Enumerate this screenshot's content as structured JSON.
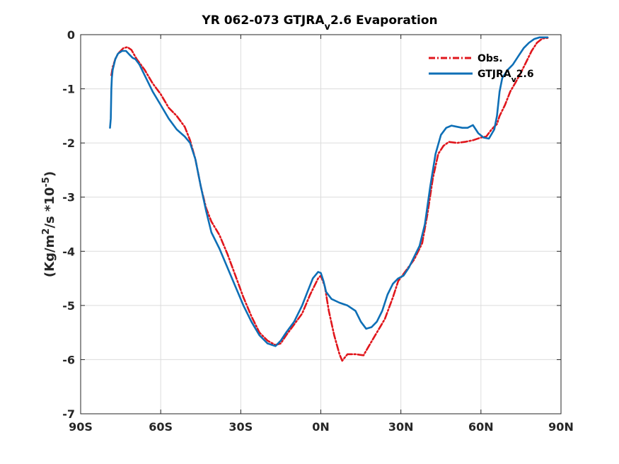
{
  "chart_data": {
    "type": "line",
    "title": "YR 062-073 GTJRA",
    "title_sub": "v",
    "title_rest": "2.6 Evaporation",
    "ylabel": "(Kg/m",
    "ylabel_sup1": "2",
    "ylabel_mid": "/s *10",
    "ylabel_sup2": "-5",
    "ylabel_end": ")",
    "xlim": [
      -90,
      90
    ],
    "ylim": [
      -7,
      0
    ],
    "x_ticks": [
      -90,
      -60,
      -30,
      0,
      30,
      60,
      90
    ],
    "x_tick_labels": [
      "90S",
      "60S",
      "30S",
      "0N",
      "30N",
      "60N",
      "90N"
    ],
    "y_ticks": [
      0,
      -1,
      -2,
      -3,
      -4,
      -5,
      -6,
      -7
    ],
    "y_tick_labels": [
      "0",
      "-1",
      "-2",
      "-3",
      "-4",
      "-5",
      "-6",
      "-7"
    ],
    "grid": true,
    "legend_position": "top-right",
    "series": [
      {
        "name": "Obs.",
        "color": "#e0161c",
        "style": "dash-dot",
        "points": [
          [
            -78.5,
            -0.75
          ],
          [
            -78,
            -0.6
          ],
          [
            -77,
            -0.45
          ],
          [
            -76,
            -0.35
          ],
          [
            -74,
            -0.25
          ],
          [
            -72.5,
            -0.23
          ],
          [
            -71,
            -0.28
          ],
          [
            -69,
            -0.45
          ],
          [
            -66,
            -0.65
          ],
          [
            -63,
            -0.9
          ],
          [
            -60,
            -1.1
          ],
          [
            -57,
            -1.35
          ],
          [
            -54,
            -1.5
          ],
          [
            -51,
            -1.7
          ],
          [
            -49,
            -1.95
          ],
          [
            -47,
            -2.3
          ],
          [
            -45,
            -2.8
          ],
          [
            -43,
            -3.2
          ],
          [
            -41,
            -3.45
          ],
          [
            -38,
            -3.7
          ],
          [
            -35,
            -4.05
          ],
          [
            -32,
            -4.45
          ],
          [
            -29,
            -4.85
          ],
          [
            -26,
            -5.2
          ],
          [
            -23,
            -5.5
          ],
          [
            -20,
            -5.65
          ],
          [
            -17,
            -5.73
          ],
          [
            -15,
            -5.7
          ],
          [
            -13,
            -5.55
          ],
          [
            -10,
            -5.35
          ],
          [
            -7,
            -5.15
          ],
          [
            -4,
            -4.8
          ],
          [
            -1,
            -4.5
          ],
          [
            0,
            -4.45
          ],
          [
            1.5,
            -4.65
          ],
          [
            3,
            -5.1
          ],
          [
            5,
            -5.55
          ],
          [
            7,
            -5.9
          ],
          [
            8,
            -6.02
          ],
          [
            10,
            -5.9
          ],
          [
            13,
            -5.9
          ],
          [
            16,
            -5.92
          ],
          [
            18,
            -5.75
          ],
          [
            21,
            -5.5
          ],
          [
            24,
            -5.25
          ],
          [
            27,
            -4.85
          ],
          [
            29,
            -4.55
          ],
          [
            32,
            -4.35
          ],
          [
            35,
            -4.15
          ],
          [
            38,
            -3.85
          ],
          [
            40,
            -3.3
          ],
          [
            42,
            -2.65
          ],
          [
            44,
            -2.2
          ],
          [
            46,
            -2.05
          ],
          [
            48,
            -1.98
          ],
          [
            51,
            -2.0
          ],
          [
            54,
            -1.98
          ],
          [
            57,
            -1.95
          ],
          [
            60,
            -1.9
          ],
          [
            62,
            -1.88
          ],
          [
            64,
            -1.75
          ],
          [
            66,
            -1.65
          ],
          [
            67,
            -1.5
          ],
          [
            69,
            -1.3
          ],
          [
            71,
            -1.05
          ],
          [
            73,
            -0.88
          ],
          [
            75,
            -0.7
          ],
          [
            77,
            -0.5
          ],
          [
            79,
            -0.3
          ],
          [
            81,
            -0.15
          ],
          [
            83,
            -0.07
          ],
          [
            85,
            -0.06
          ]
        ]
      },
      {
        "name": "GTJRA",
        "name_sub": "v",
        "name_rest": "2.6",
        "color": "#0e6fb6",
        "style": "solid",
        "points": [
          [
            -79,
            -1.72
          ],
          [
            -78.7,
            -1.55
          ],
          [
            -78.5,
            -1.0
          ],
          [
            -78.3,
            -0.8
          ],
          [
            -78,
            -0.65
          ],
          [
            -77,
            -0.45
          ],
          [
            -76,
            -0.35
          ],
          [
            -74.5,
            -0.3
          ],
          [
            -73,
            -0.3
          ],
          [
            -71.5,
            -0.38
          ],
          [
            -70.5,
            -0.43
          ],
          [
            -69.5,
            -0.45
          ],
          [
            -68,
            -0.55
          ],
          [
            -66,
            -0.75
          ],
          [
            -63,
            -1.05
          ],
          [
            -60,
            -1.3
          ],
          [
            -57,
            -1.55
          ],
          [
            -54,
            -1.75
          ],
          [
            -51,
            -1.88
          ],
          [
            -49,
            -2.0
          ],
          [
            -47,
            -2.3
          ],
          [
            -45,
            -2.8
          ],
          [
            -43,
            -3.25
          ],
          [
            -41,
            -3.65
          ],
          [
            -38,
            -3.95
          ],
          [
            -35,
            -4.3
          ],
          [
            -32,
            -4.65
          ],
          [
            -29,
            -5.0
          ],
          [
            -26,
            -5.3
          ],
          [
            -23,
            -5.55
          ],
          [
            -20,
            -5.7
          ],
          [
            -17,
            -5.75
          ],
          [
            -15,
            -5.65
          ],
          [
            -13,
            -5.5
          ],
          [
            -10,
            -5.3
          ],
          [
            -7,
            -5.0
          ],
          [
            -5,
            -4.75
          ],
          [
            -3,
            -4.5
          ],
          [
            -1,
            -4.38
          ],
          [
            0,
            -4.4
          ],
          [
            1,
            -4.55
          ],
          [
            2,
            -4.75
          ],
          [
            4,
            -4.88
          ],
          [
            7,
            -4.95
          ],
          [
            10,
            -5.0
          ],
          [
            13,
            -5.1
          ],
          [
            15,
            -5.3
          ],
          [
            17,
            -5.43
          ],
          [
            19,
            -5.4
          ],
          [
            21,
            -5.3
          ],
          [
            23,
            -5.1
          ],
          [
            25,
            -4.8
          ],
          [
            27,
            -4.6
          ],
          [
            29,
            -4.5
          ],
          [
            31,
            -4.45
          ],
          [
            33,
            -4.3
          ],
          [
            35,
            -4.1
          ],
          [
            37,
            -3.9
          ],
          [
            39,
            -3.5
          ],
          [
            41,
            -2.8
          ],
          [
            43,
            -2.2
          ],
          [
            45,
            -1.85
          ],
          [
            47,
            -1.72
          ],
          [
            49,
            -1.68
          ],
          [
            51,
            -1.7
          ],
          [
            53,
            -1.72
          ],
          [
            55,
            -1.72
          ],
          [
            57,
            -1.67
          ],
          [
            59,
            -1.82
          ],
          [
            61,
            -1.9
          ],
          [
            63,
            -1.92
          ],
          [
            65,
            -1.75
          ],
          [
            66,
            -1.5
          ],
          [
            67,
            -1.05
          ],
          [
            68,
            -0.8
          ],
          [
            70,
            -0.65
          ],
          [
            72,
            -0.55
          ],
          [
            74,
            -0.4
          ],
          [
            76,
            -0.25
          ],
          [
            78,
            -0.15
          ],
          [
            80,
            -0.08
          ],
          [
            82,
            -0.05
          ],
          [
            85,
            -0.05
          ]
        ]
      }
    ]
  }
}
